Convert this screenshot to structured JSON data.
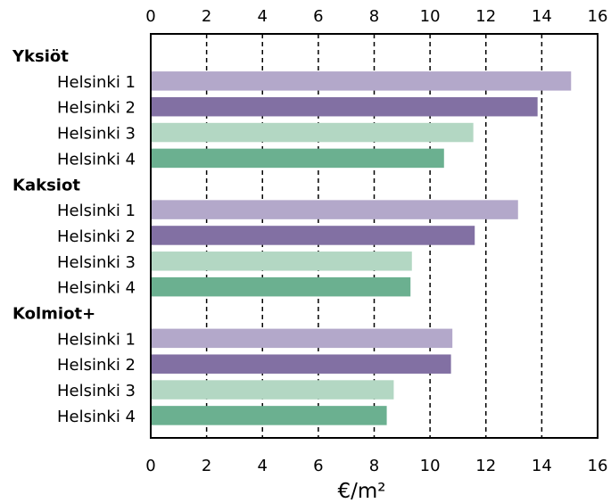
{
  "chart_data": {
    "type": "bar",
    "orientation": "horizontal",
    "title": "",
    "xlabel": "€/m²",
    "ylabel": "",
    "xlim": [
      0,
      16
    ],
    "xticks": [
      0,
      2,
      4,
      6,
      8,
      10,
      12,
      14,
      16
    ],
    "grid": "vertical dashed lines at major ticks",
    "legend": "none",
    "colors": {
      "Helsinki 1": "#b3a8ca",
      "Helsinki 2": "#8270a3",
      "Helsinki 3": "#b3d7c3",
      "Helsinki 4": "#6bb090"
    },
    "groups": [
      {
        "label": "Yksiöt",
        "bars": [
          {
            "label": "Helsinki 1",
            "value": 15.05
          },
          {
            "label": "Helsinki 2",
            "value": 13.85
          },
          {
            "label": "Helsinki 3",
            "value": 11.55
          },
          {
            "label": "Helsinki 4",
            "value": 10.5
          }
        ]
      },
      {
        "label": "Kaksiot",
        "bars": [
          {
            "label": "Helsinki 1",
            "value": 13.15
          },
          {
            "label": "Helsinki 2",
            "value": 11.6
          },
          {
            "label": "Helsinki 3",
            "value": 9.35
          },
          {
            "label": "Helsinki 4",
            "value": 9.3
          }
        ]
      },
      {
        "label": "Kolmiot+",
        "bars": [
          {
            "label": "Helsinki 1",
            "value": 10.8
          },
          {
            "label": "Helsinki 2",
            "value": 10.75
          },
          {
            "label": "Helsinki 3",
            "value": 8.7
          },
          {
            "label": "Helsinki 4",
            "value": 8.45
          }
        ]
      }
    ]
  }
}
